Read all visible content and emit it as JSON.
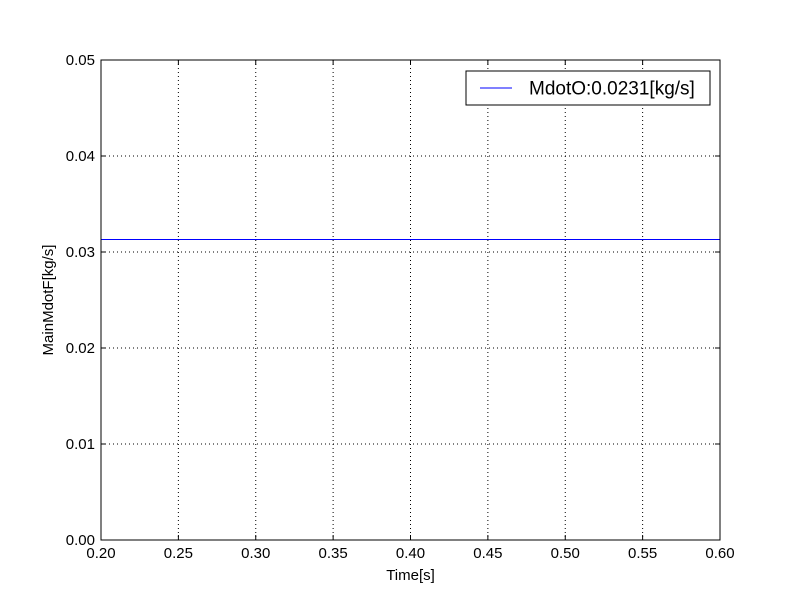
{
  "chart_data": {
    "type": "line",
    "title": "",
    "xlabel": "Time[s]",
    "ylabel": "MainMdotF[kg/s]",
    "xlim": [
      0.2,
      0.6
    ],
    "ylim": [
      0.0,
      0.05
    ],
    "xticks": [
      "0.20",
      "0.25",
      "0.30",
      "0.35",
      "0.40",
      "0.45",
      "0.50",
      "0.55",
      "0.60"
    ],
    "yticks": [
      "0.00",
      "0.01",
      "0.02",
      "0.03",
      "0.04",
      "0.05"
    ],
    "grid": true,
    "grid_style": "dotted",
    "legend_position": "top-right",
    "series": [
      {
        "name": "MdotO:0.0231[kg/s]",
        "color": "#0000ff",
        "x": [
          0.2,
          0.6
        ],
        "y": [
          0.0313,
          0.0313
        ]
      }
    ]
  }
}
